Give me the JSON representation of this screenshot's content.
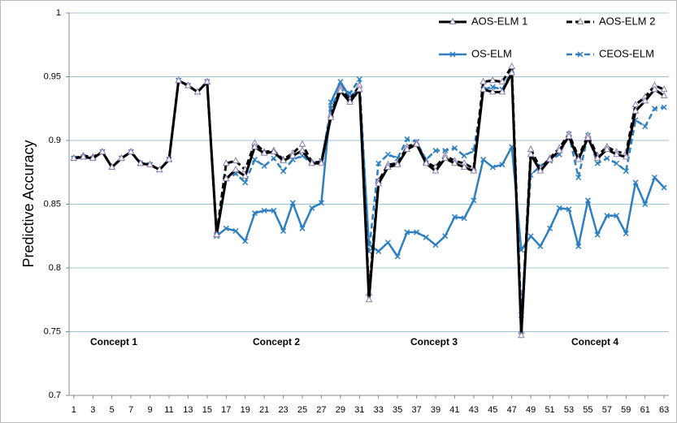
{
  "chart_data": {
    "type": "line",
    "y_label": "Predictive Accuracy",
    "x": [
      1,
      2,
      3,
      4,
      5,
      6,
      7,
      8,
      9,
      10,
      11,
      12,
      13,
      14,
      15,
      16,
      17,
      18,
      19,
      20,
      21,
      22,
      23,
      24,
      25,
      26,
      27,
      28,
      29,
      30,
      31,
      32,
      33,
      34,
      35,
      36,
      37,
      38,
      39,
      40,
      41,
      42,
      43,
      44,
      45,
      46,
      47,
      48,
      49,
      50,
      51,
      52,
      53,
      54,
      55,
      56,
      57,
      58,
      59,
      60,
      61,
      62,
      63
    ],
    "xlim": [
      0.5,
      63.5
    ],
    "xticks": [
      1,
      3,
      5,
      7,
      9,
      11,
      13,
      15,
      17,
      19,
      21,
      23,
      25,
      27,
      29,
      31,
      33,
      35,
      37,
      39,
      41,
      43,
      45,
      47,
      49,
      51,
      53,
      55,
      57,
      59,
      61,
      63
    ],
    "ylim": [
      0.7,
      1
    ],
    "yticks": [
      0.7,
      0.75,
      0.8,
      0.85,
      0.9,
      0.95,
      1
    ],
    "grid": true,
    "legend": "upper right",
    "annotations": [
      "Concept 1",
      "Concept 2",
      "Concept 3",
      "Concept 4"
    ],
    "series": [
      {
        "name": "AOS-ELM 1",
        "color": "#000000",
        "line_style": "solid",
        "marker": "triangle",
        "values": [
          0.886,
          0.887,
          0.886,
          0.891,
          0.879,
          0.886,
          0.891,
          0.882,
          0.881,
          0.877,
          0.885,
          0.947,
          0.943,
          0.938,
          0.946,
          0.826,
          0.87,
          0.877,
          0.872,
          0.895,
          0.89,
          0.891,
          0.884,
          0.888,
          0.892,
          0.882,
          0.882,
          0.918,
          0.939,
          0.93,
          0.94,
          0.775,
          0.866,
          0.879,
          0.881,
          0.893,
          0.897,
          0.882,
          0.876,
          0.886,
          0.882,
          0.879,
          0.876,
          0.94,
          0.938,
          0.938,
          0.953,
          0.747,
          0.889,
          0.876,
          0.885,
          0.892,
          0.903,
          0.885,
          0.902,
          0.886,
          0.893,
          0.889,
          0.887,
          0.923,
          0.931,
          0.94,
          0.935
        ]
      },
      {
        "name": "AOS-ELM 2",
        "color": "#000000",
        "line_style": "dashed",
        "marker": "triangle",
        "values": [
          0.886,
          0.888,
          0.887,
          0.891,
          0.879,
          0.886,
          0.891,
          0.882,
          0.881,
          0.877,
          0.885,
          0.947,
          0.943,
          0.938,
          0.946,
          0.826,
          0.882,
          0.884,
          0.877,
          0.898,
          0.891,
          0.892,
          0.885,
          0.89,
          0.897,
          0.883,
          0.883,
          0.92,
          0.941,
          0.932,
          0.943,
          0.78,
          0.868,
          0.881,
          0.882,
          0.895,
          0.898,
          0.883,
          0.879,
          0.888,
          0.884,
          0.882,
          0.878,
          0.946,
          0.947,
          0.946,
          0.958,
          0.75,
          0.893,
          0.878,
          0.886,
          0.894,
          0.905,
          0.887,
          0.904,
          0.888,
          0.895,
          0.891,
          0.89,
          0.928,
          0.934,
          0.943,
          0.94
        ]
      },
      {
        "name": "OS-ELM",
        "color": "#2e7fbf",
        "line_style": "solid",
        "marker": "x",
        "values": [
          0.886,
          0.887,
          0.886,
          0.891,
          0.879,
          0.886,
          0.891,
          0.882,
          0.881,
          0.877,
          0.885,
          0.947,
          0.943,
          0.938,
          0.946,
          0.825,
          0.831,
          0.829,
          0.821,
          0.843,
          0.845,
          0.845,
          0.829,
          0.851,
          0.831,
          0.847,
          0.851,
          0.93,
          0.946,
          0.934,
          0.941,
          0.818,
          0.813,
          0.82,
          0.809,
          0.828,
          0.828,
          0.824,
          0.818,
          0.825,
          0.84,
          0.839,
          0.853,
          0.885,
          0.879,
          0.881,
          0.895,
          0.814,
          0.825,
          0.817,
          0.831,
          0.847,
          0.846,
          0.817,
          0.853,
          0.826,
          0.841,
          0.841,
          0.827,
          0.867,
          0.85,
          0.871,
          0.863
        ]
      },
      {
        "name": "CEOS-ELM",
        "color": "#2e7fbf",
        "line_style": "dashed",
        "marker": "x",
        "values": [
          0.886,
          0.887,
          0.886,
          0.891,
          0.879,
          0.886,
          0.891,
          0.882,
          0.881,
          0.877,
          0.885,
          0.947,
          0.943,
          0.938,
          0.946,
          0.826,
          0.87,
          0.874,
          0.867,
          0.885,
          0.88,
          0.886,
          0.876,
          0.885,
          0.888,
          0.882,
          0.884,
          0.925,
          0.942,
          0.937,
          0.948,
          0.813,
          0.882,
          0.889,
          0.886,
          0.901,
          0.899,
          0.885,
          0.892,
          0.892,
          0.894,
          0.888,
          0.892,
          0.94,
          0.942,
          0.94,
          0.955,
          0.763,
          0.873,
          0.88,
          0.884,
          0.889,
          0.905,
          0.871,
          0.904,
          0.882,
          0.886,
          0.882,
          0.876,
          0.916,
          0.911,
          0.925,
          0.926
        ]
      }
    ]
  }
}
